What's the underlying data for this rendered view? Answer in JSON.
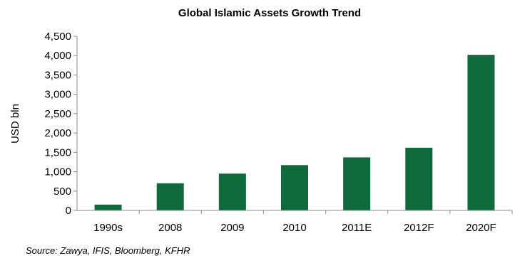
{
  "chart_data": {
    "type": "bar",
    "title": "Global Islamic Assets Growth Trend",
    "ylabel": "USD bln",
    "xlabel": "",
    "categories": [
      "1990s",
      "2008",
      "2009",
      "2010",
      "2011E",
      "2012F",
      "2020F"
    ],
    "values": [
      150,
      700,
      950,
      1170,
      1370,
      1620,
      4020
    ],
    "ylim": [
      0,
      4500
    ],
    "yticks": [
      0,
      500,
      1000,
      1500,
      2000,
      2500,
      3000,
      3500,
      4000,
      4500
    ],
    "ytick_labels": [
      "0",
      "500",
      "1,000",
      "1,500",
      "2,000",
      "2,500",
      "3,000",
      "3,500",
      "4,000",
      "4,500"
    ],
    "bar_color": "#0f6b3b",
    "grid": false,
    "legend": "none"
  },
  "source": "Source: Zawya, IFIS, Bloomberg, KFHR"
}
